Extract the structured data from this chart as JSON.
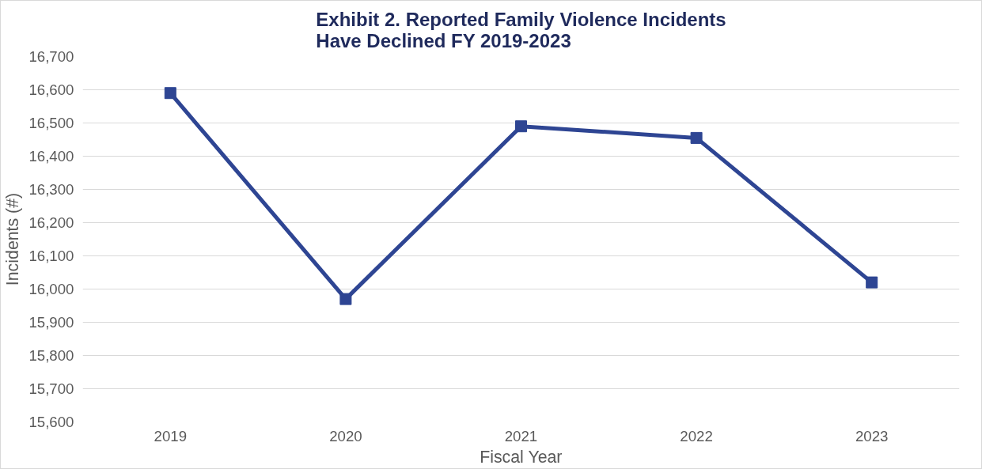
{
  "chart_data": {
    "type": "line",
    "title": "Exhibit 2. Reported Family Violence Incidents\nHave Declined FY 2019-2023",
    "xlabel": "Fiscal Year",
    "ylabel": "Incidents (#)",
    "categories": [
      "2019",
      "2020",
      "2021",
      "2022",
      "2023"
    ],
    "series": [
      {
        "color": "#2e4593",
        "values": [
          16590,
          15970,
          16490,
          16455,
          16020
        ]
      }
    ],
    "ylim": [
      15600,
      16700
    ],
    "yticks": [
      {
        "value": 15600,
        "label": "15,600"
      },
      {
        "value": 15700,
        "label": "15,700"
      },
      {
        "value": 15800,
        "label": "15,800"
      },
      {
        "value": 15900,
        "label": "15,900"
      },
      {
        "value": 16000,
        "label": "16,000"
      },
      {
        "value": 16100,
        "label": "16,100"
      },
      {
        "value": 16200,
        "label": "16,200"
      },
      {
        "value": 16300,
        "label": "16,300"
      },
      {
        "value": 16400,
        "label": "16,400"
      },
      {
        "value": 16500,
        "label": "16,500"
      },
      {
        "value": 16600,
        "label": "16,600"
      },
      {
        "value": 16700,
        "label": "16,700"
      }
    ],
    "grid": "y",
    "marker": "square",
    "line_style": "solid"
  }
}
